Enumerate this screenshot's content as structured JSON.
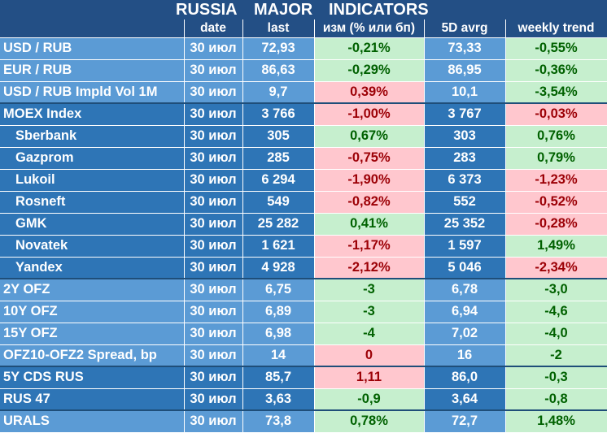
{
  "title": {
    "w1": "RUSSIA",
    "w2": "MAJOR",
    "w3": "INDICATORS"
  },
  "headers": [
    "date",
    "last",
    "изм (% или бп)",
    "5D avrg",
    "weekly trend"
  ],
  "rows": [
    {
      "name": "USD / RUB",
      "date": "30 июл",
      "last": "72,93",
      "chg": "-0,21%",
      "chg_dir": "pos",
      "avg": "73,33",
      "trend": "-0,55%",
      "trend_dir": "pos"
    },
    {
      "name": "EUR / RUB",
      "date": "30 июл",
      "last": "86,63",
      "chg": "-0,29%",
      "chg_dir": "pos",
      "avg": "86,95",
      "trend": "-0,36%",
      "trend_dir": "pos"
    },
    {
      "name": "USD / RUB Impld Vol 1M",
      "date": "30 июл",
      "last": "9,7",
      "chg": "0,39%",
      "chg_dir": "neg",
      "avg": "10,1",
      "trend": "-3,54%",
      "trend_dir": "pos"
    },
    {
      "name": "MOEX Index",
      "date": "30 июл",
      "last": "3 766",
      "chg": "-1,00%",
      "chg_dir": "neg",
      "avg": "3 767",
      "trend": "-0,03%",
      "trend_dir": "neg"
    },
    {
      "name": "Sberbank",
      "date": "30 июл",
      "last": "305",
      "chg": "0,67%",
      "chg_dir": "pos",
      "avg": "303",
      "trend": "0,76%",
      "trend_dir": "pos"
    },
    {
      "name": "Gazprom",
      "date": "30 июл",
      "last": "285",
      "chg": "-0,75%",
      "chg_dir": "neg",
      "avg": "283",
      "trend": "0,79%",
      "trend_dir": "pos"
    },
    {
      "name": "Lukoil",
      "date": "30 июл",
      "last": "6 294",
      "chg": "-1,90%",
      "chg_dir": "neg",
      "avg": "6 373",
      "trend": "-1,23%",
      "trend_dir": "neg"
    },
    {
      "name": "Rosneft",
      "date": "30 июл",
      "last": "549",
      "chg": "-0,82%",
      "chg_dir": "neg",
      "avg": "552",
      "trend": "-0,52%",
      "trend_dir": "neg"
    },
    {
      "name": "GMK",
      "date": "30 июл",
      "last": "25 282",
      "chg": "0,41%",
      "chg_dir": "pos",
      "avg": "25 352",
      "trend": "-0,28%",
      "trend_dir": "neg"
    },
    {
      "name": "Novatek",
      "date": "30 июл",
      "last": "1 621",
      "chg": "-1,17%",
      "chg_dir": "neg",
      "avg": "1 597",
      "trend": "1,49%",
      "trend_dir": "pos"
    },
    {
      "name": "Yandex",
      "date": "30 июл",
      "last": "4 928",
      "chg": "-2,12%",
      "chg_dir": "neg",
      "avg": "5 046",
      "trend": "-2,34%",
      "trend_dir": "neg"
    },
    {
      "name": "2Y OFZ",
      "date": "30 июл",
      "last": "6,75",
      "chg": "-3",
      "chg_dir": "pos",
      "avg": "6,78",
      "trend": "-3,0",
      "trend_dir": "pos"
    },
    {
      "name": "10Y OFZ",
      "date": "30 июл",
      "last": "6,89",
      "chg": "-3",
      "chg_dir": "pos",
      "avg": "6,94",
      "trend": "-4,6",
      "trend_dir": "pos"
    },
    {
      "name": "15Y OFZ",
      "date": "30 июл",
      "last": "6,98",
      "chg": "-4",
      "chg_dir": "pos",
      "avg": "7,02",
      "trend": "-4,0",
      "trend_dir": "pos"
    },
    {
      "name": "OFZ10-OFZ2 Spread, bp",
      "date": "30 июл",
      "last": "14",
      "chg": "0",
      "chg_dir": "neg",
      "avg": "16",
      "trend": "-2",
      "trend_dir": "pos"
    },
    {
      "name": "5Y CDS RUS",
      "date": "30 июл",
      "last": "85,7",
      "chg": "1,11",
      "chg_dir": "neg",
      "avg": "86,0",
      "trend": "-0,3",
      "trend_dir": "pos"
    },
    {
      "name": "RUS 47",
      "date": "30 июл",
      "last": "3,63",
      "chg": "-0,9",
      "chg_dir": "pos",
      "avg": "3,64",
      "trend": "-0,8",
      "trend_dir": "pos"
    },
    {
      "name": "URALS",
      "date": "30 июл",
      "last": "73,8",
      "chg": "0,78%",
      "chg_dir": "pos",
      "avg": "72,7",
      "trend": "1,48%",
      "trend_dir": "pos"
    }
  ]
}
